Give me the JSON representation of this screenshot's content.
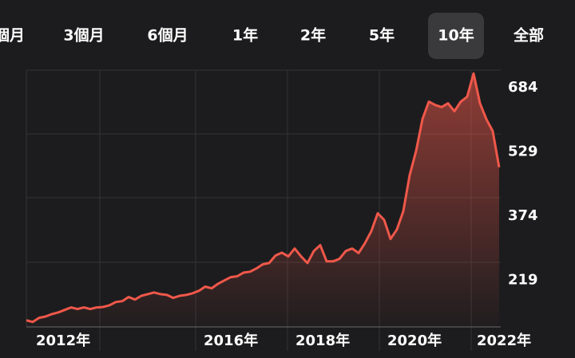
{
  "tabs": [
    "個月",
    "3個月",
    "6個月",
    "1年",
    "2年",
    "5年",
    "10年",
    "全部"
  ],
  "selected_tab": 6,
  "chart_data": {
    "type": "area",
    "x_labels": [
      "2012年",
      "2016年",
      "2018年",
      "2020年",
      "2022年"
    ],
    "series": [
      {
        "color": "#f0584a",
        "values": [
          123,
          119,
          129,
          132,
          138,
          142,
          148,
          154,
          150,
          154,
          150,
          154,
          155,
          159,
          167,
          169,
          179,
          173,
          182,
          186,
          190,
          186,
          184,
          177,
          182,
          184,
          188,
          194,
          204,
          200,
          211,
          219,
          227,
          229,
          238,
          240,
          248,
          258,
          261,
          279,
          286,
          277,
          296,
          277,
          261,
          290,
          304,
          265,
          265,
          271,
          290,
          296,
          285,
          309,
          338,
          381,
          365,
          319,
          342,
          386,
          473,
          531,
          608,
          650,
          642,
          637,
          646,
          627,
          650,
          662,
          718,
          646,
          608,
          579,
          492
        ]
      }
    ],
    "ylim": [
      107,
      726
    ],
    "yticks": [
      219,
      374,
      529,
      684
    ],
    "grid": true
  }
}
